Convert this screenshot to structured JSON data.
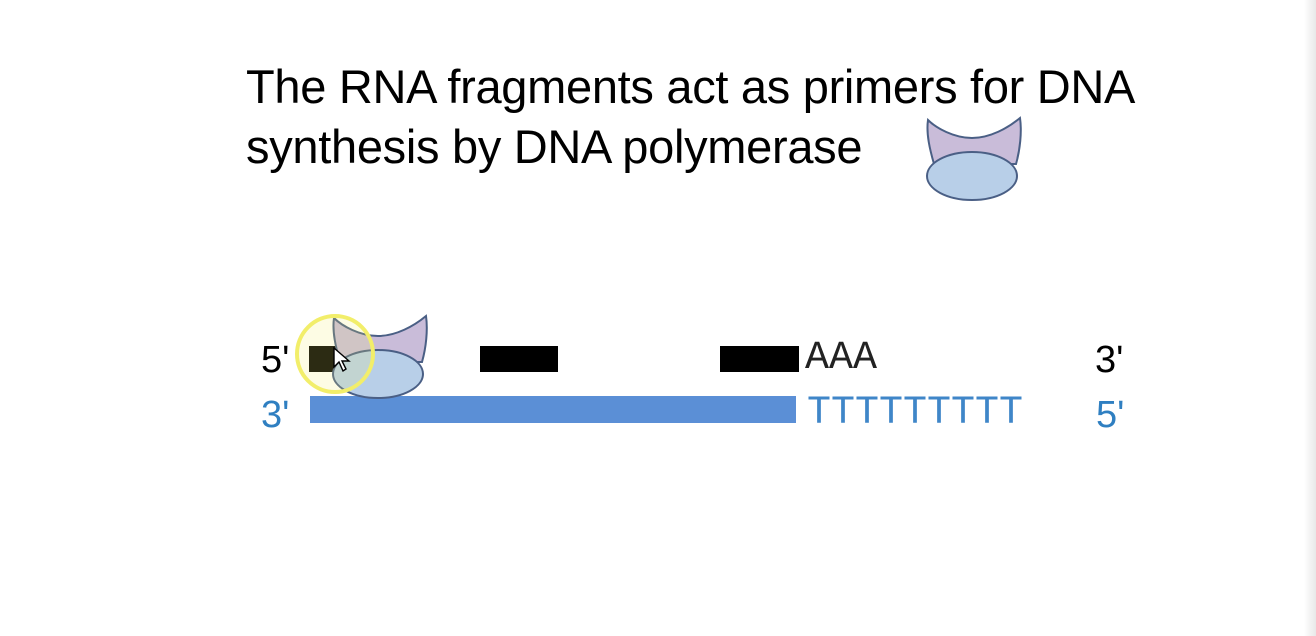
{
  "slide": {
    "title_line_1": "The RNA fragments act as primers for DNA",
    "title_line_2": "synthesis by DNA polymerase"
  },
  "top_strand": {
    "left_end": "5'",
    "right_end": "3'",
    "poly_a": "AAA",
    "color": "#000000"
  },
  "bottom_strand": {
    "left_end": "3'",
    "right_end": "5'",
    "poly_t": "TTTTTTTTT",
    "color": "#5b8fd6"
  },
  "icons": {
    "legend_enzyme": "dna-polymerase-icon",
    "bound_enzyme": "dna-polymerase-icon",
    "cursor": "mouse-pointer-icon"
  },
  "colors": {
    "enzyme_top": "#c9bcd9",
    "enzyme_bottom": "#b8cfe8",
    "enzyme_outline": "#4a5f85",
    "cursor_highlight": "#f2ee6a",
    "label_blue": "#2f7fc1"
  }
}
